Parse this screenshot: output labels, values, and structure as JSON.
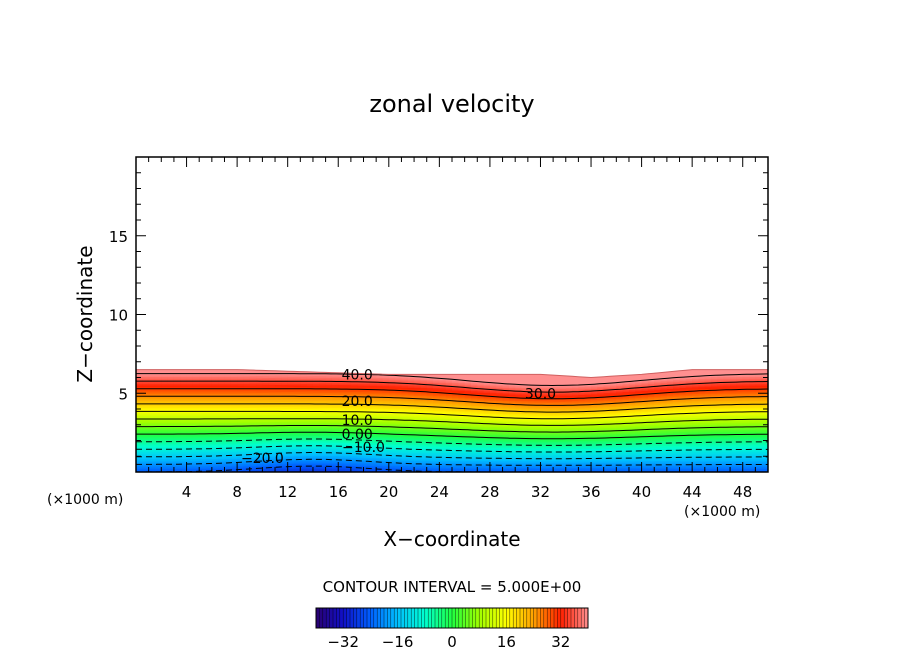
{
  "chart_data": {
    "type": "contour",
    "title": "zonal velocity",
    "xlabel": "X−coordinate",
    "ylabel": "Z−coordinate",
    "x_unit_left": "(×1000 m)",
    "x_unit_right": "(×1000 m)",
    "xlim": [
      0,
      50
    ],
    "ylim": [
      0,
      20
    ],
    "x_ticks": [
      4,
      8,
      12,
      16,
      20,
      24,
      28,
      32,
      36,
      40,
      44,
      48
    ],
    "x_tick_labels": [
      "4",
      "8",
      "12",
      "16",
      "20",
      "24",
      "28",
      "32",
      "36",
      "40",
      "44",
      "48"
    ],
    "y_ticks": [
      5,
      10,
      15
    ],
    "y_tick_labels": [
      "5",
      "10",
      "15"
    ],
    "top_boundary_x": [
      0,
      4,
      8,
      12,
      16,
      20,
      24,
      28,
      32,
      36,
      40,
      44,
      48,
      50
    ],
    "top_boundary_z": [
      6.5,
      6.5,
      6.5,
      6.4,
      6.3,
      6.2,
      6.2,
      6.2,
      6.2,
      6.0,
      6.2,
      6.5,
      6.5,
      6.5
    ],
    "contour_interval": 5.0,
    "contour_interval_text": "CONTOUR INTERVAL = 5.000E+00",
    "contour_labels": [
      {
        "text": "40.0",
        "x": 17.5,
        "z": 6.2
      },
      {
        "text": "30.0",
        "x": 32.0,
        "z": 5.0
      },
      {
        "text": "20.0",
        "x": 17.5,
        "z": 4.5
      },
      {
        "text": "10.0",
        "x": 17.5,
        "z": 3.3
      },
      {
        "text": "0.00",
        "x": 17.5,
        "z": 2.4
      },
      {
        "text": "−10.0",
        "x": 18.0,
        "z": 1.6
      },
      {
        "text": "−20.0",
        "x": 10.0,
        "z": 0.9
      }
    ],
    "colorbar": {
      "range": [
        -40,
        40
      ],
      "ticks": [
        -32,
        -16,
        0,
        16,
        32
      ],
      "tick_labels": [
        "−32",
        "−16",
        "0",
        "16",
        "32"
      ]
    }
  }
}
